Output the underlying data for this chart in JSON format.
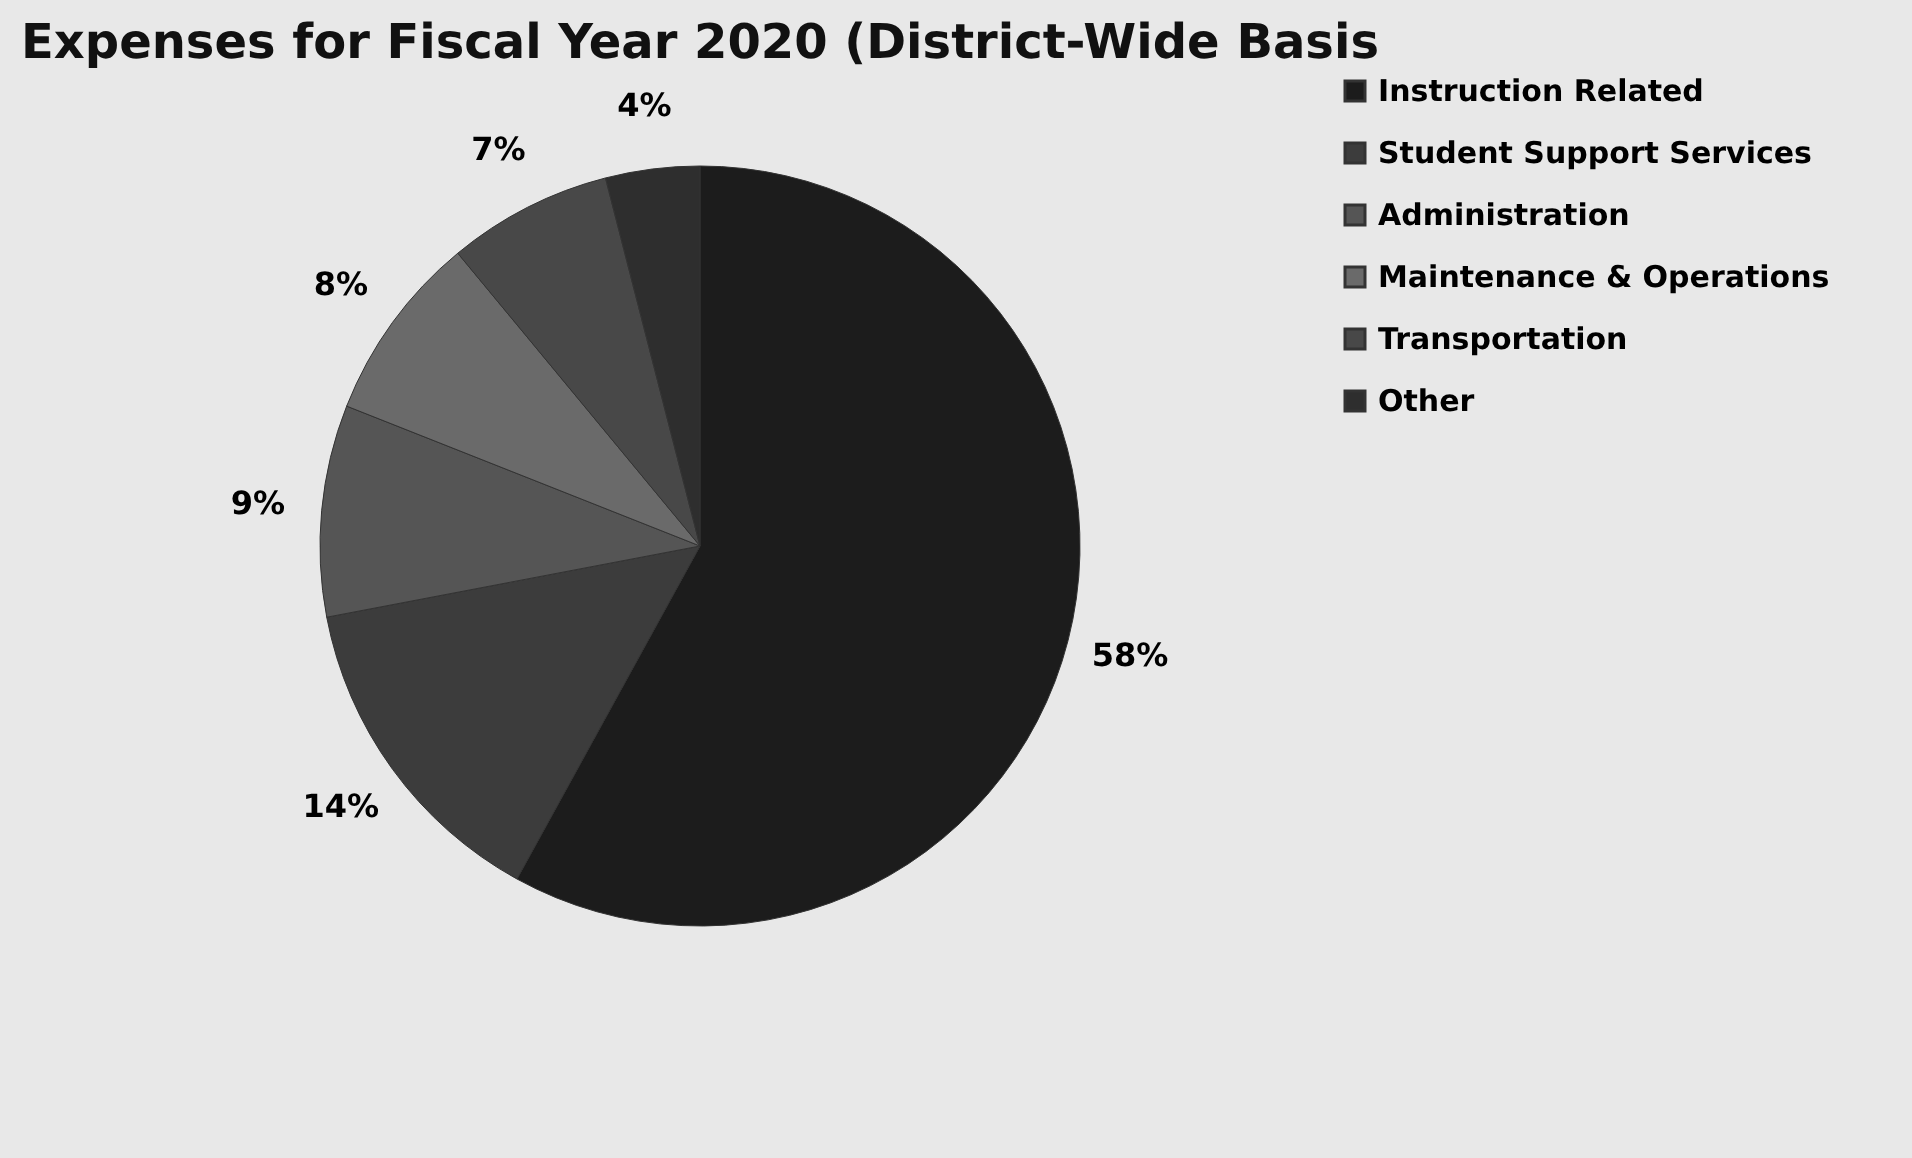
{
  "chart_data": {
    "type": "pie",
    "title": "Expenses for Fiscal Year 2020 (District-Wide Basis",
    "categories": [
      "Instruction Related",
      "Student Support Services",
      "Administration",
      "Maintenance & Operations",
      "Transportation",
      "Other"
    ],
    "values": [
      58,
      14,
      9,
      8,
      7,
      4
    ],
    "value_labels": [
      "58%",
      "14%",
      "9%",
      "8%",
      "7%",
      "4%"
    ],
    "colors": [
      "#1c1c1c",
      "#3c3c3c",
      "#555555",
      "#6a6a6a",
      "#484848",
      "#2e2e2e"
    ],
    "legend": "right"
  }
}
